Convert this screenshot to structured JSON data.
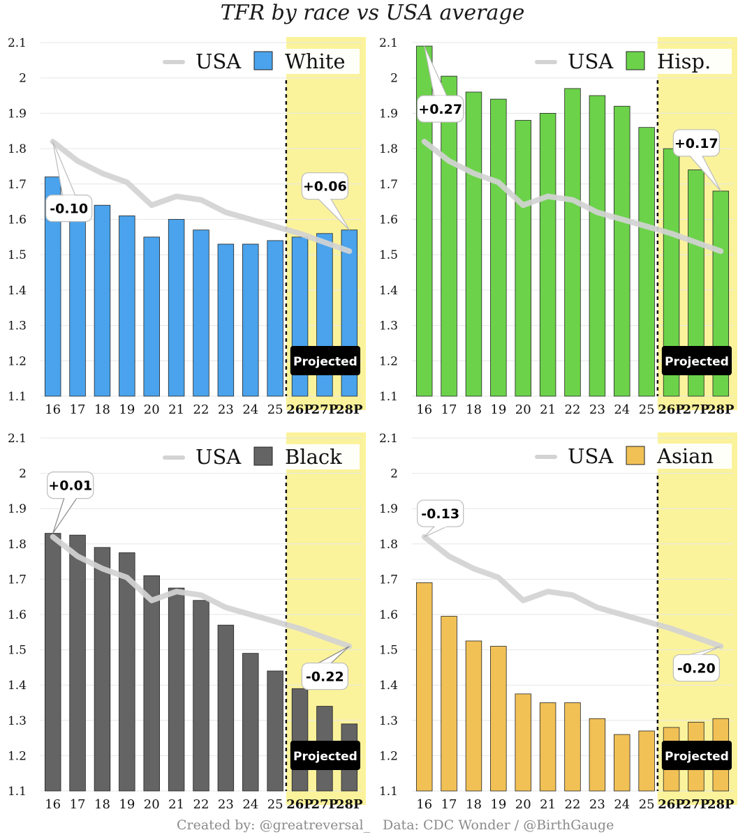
{
  "title": "TFR by race vs USA average",
  "footer": {
    "credit": "Created by: @greatreversal_",
    "source": "Data: CDC Wonder / @BirthGauge"
  },
  "colors": {
    "usa_line": "#d3d3d3",
    "projection_band": "#fbf39c",
    "grid": "#e6e6e6"
  },
  "chart_data": [
    {
      "type": "bar",
      "name": "White",
      "color": "#4aa3ec",
      "categories": [
        "16",
        "17",
        "18",
        "19",
        "20",
        "21",
        "22",
        "23",
        "24",
        "25",
        "26P",
        "27P",
        "28P"
      ],
      "values": [
        1.72,
        1.665,
        1.64,
        1.61,
        1.55,
        1.6,
        1.57,
        1.53,
        1.53,
        1.54,
        1.55,
        1.56,
        1.57
      ],
      "usa_series": {
        "name": "USA",
        "values": [
          1.82,
          1.765,
          1.73,
          1.705,
          1.64,
          1.665,
          1.655,
          1.62,
          1.6,
          1.58,
          1.56,
          1.535,
          1.51
        ]
      },
      "legend": [
        "USA",
        "White"
      ],
      "ylim": [
        1.1,
        2.1
      ],
      "yticks": [
        "1.1",
        "1.2",
        "1.3",
        "1.4",
        "1.5",
        "1.6",
        "1.7",
        "1.8",
        "1.9",
        "2",
        "2.1"
      ],
      "projected_label": "Projected",
      "projected_from": "26P",
      "callouts": [
        {
          "text": "-0.10",
          "category": "16"
        },
        {
          "text": "+0.06",
          "category": "28P"
        }
      ]
    },
    {
      "type": "bar",
      "name": "Hisp.",
      "color": "#6cd24a",
      "categories": [
        "16",
        "17",
        "18",
        "19",
        "20",
        "21",
        "22",
        "23",
        "24",
        "25",
        "26P",
        "27P",
        "28P"
      ],
      "values": [
        2.09,
        2.005,
        1.96,
        1.94,
        1.88,
        1.9,
        1.97,
        1.95,
        1.92,
        1.86,
        1.8,
        1.74,
        1.68
      ],
      "usa_series": {
        "name": "USA",
        "values": [
          1.82,
          1.765,
          1.73,
          1.705,
          1.64,
          1.665,
          1.655,
          1.62,
          1.6,
          1.58,
          1.56,
          1.535,
          1.51
        ]
      },
      "legend": [
        "USA",
        "Hisp."
      ],
      "ylim": [
        1.1,
        2.1
      ],
      "yticks": [
        "1.1",
        "1.2",
        "1.3",
        "1.4",
        "1.5",
        "1.6",
        "1.7",
        "1.8",
        "1.9",
        "2",
        "2.1"
      ],
      "projected_label": "Projected",
      "projected_from": "26P",
      "callouts": [
        {
          "text": "+0.27",
          "category": "16"
        },
        {
          "text": "+0.17",
          "category": "28P"
        }
      ]
    },
    {
      "type": "bar",
      "name": "Black",
      "color": "#646464",
      "categories": [
        "16",
        "17",
        "18",
        "19",
        "20",
        "21",
        "22",
        "23",
        "24",
        "25",
        "26P",
        "27P",
        "28P"
      ],
      "values": [
        1.83,
        1.825,
        1.79,
        1.775,
        1.71,
        1.675,
        1.64,
        1.57,
        1.49,
        1.44,
        1.39,
        1.34,
        1.29
      ],
      "usa_series": {
        "name": "USA",
        "values": [
          1.82,
          1.765,
          1.73,
          1.705,
          1.64,
          1.665,
          1.655,
          1.62,
          1.6,
          1.58,
          1.56,
          1.535,
          1.51
        ]
      },
      "legend": [
        "USA",
        "Black"
      ],
      "ylim": [
        1.1,
        2.1
      ],
      "yticks": [
        "1.1",
        "1.2",
        "1.3",
        "1.4",
        "1.5",
        "1.6",
        "1.7",
        "1.8",
        "1.9",
        "2",
        "2.1"
      ],
      "projected_label": "Projected",
      "projected_from": "26P",
      "callouts": [
        {
          "text": "+0.01",
          "category": "16"
        },
        {
          "text": "-0.22",
          "category": "28P"
        }
      ]
    },
    {
      "type": "bar",
      "name": "Asian",
      "color": "#f1c156",
      "categories": [
        "16",
        "17",
        "18",
        "19",
        "20",
        "21",
        "22",
        "23",
        "24",
        "25",
        "26P",
        "27P",
        "28P"
      ],
      "values": [
        1.69,
        1.595,
        1.525,
        1.51,
        1.375,
        1.35,
        1.35,
        1.305,
        1.26,
        1.27,
        1.28,
        1.295,
        1.305
      ],
      "usa_series": {
        "name": "USA",
        "values": [
          1.82,
          1.765,
          1.73,
          1.705,
          1.64,
          1.665,
          1.655,
          1.62,
          1.6,
          1.58,
          1.56,
          1.535,
          1.51
        ]
      },
      "legend": [
        "USA",
        "Asian"
      ],
      "ylim": [
        1.1,
        2.1
      ],
      "yticks": [
        "1.1",
        "1.2",
        "1.3",
        "1.4",
        "1.5",
        "1.6",
        "1.7",
        "1.8",
        "1.9",
        "2",
        "2.1"
      ],
      "projected_label": "Projected",
      "projected_from": "26P",
      "callouts": [
        {
          "text": "-0.13",
          "category": "16"
        },
        {
          "text": "-0.20",
          "category": "28P"
        }
      ]
    }
  ]
}
